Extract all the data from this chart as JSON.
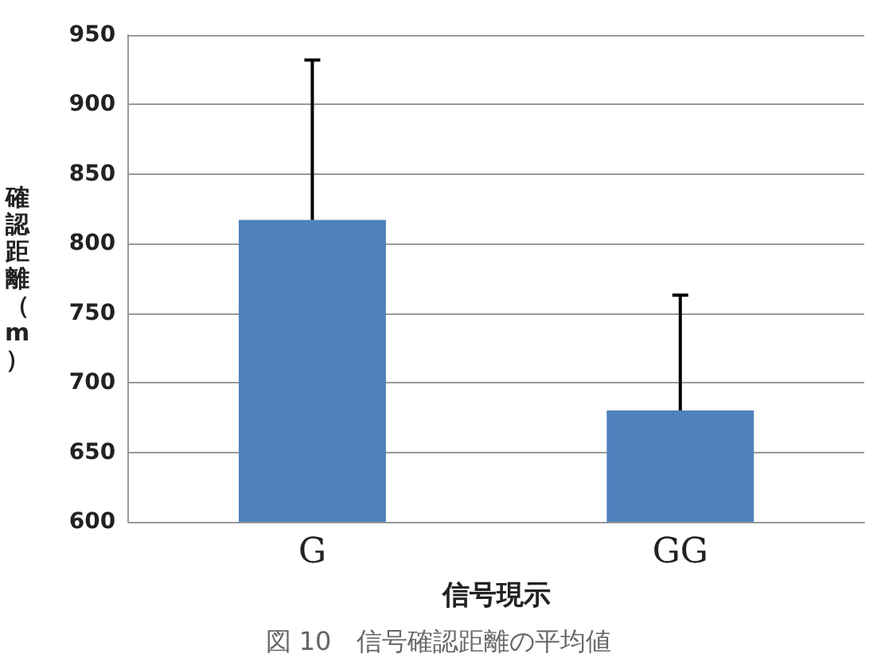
{
  "chart_data": {
    "type": "bar",
    "xlabel": "信号現示",
    "ylabel": "確認距離（m）",
    "categories": [
      "G",
      "GG"
    ],
    "series": [
      {
        "color": "#4f81bd",
        "values": [
          817,
          680
        ],
        "errors": [
          [
            817,
            932
          ],
          [
            680,
            763
          ]
        ]
      }
    ],
    "ylim": [
      600,
      950
    ],
    "yticks": [
      600,
      650,
      700,
      750,
      800,
      850,
      900,
      950
    ],
    "grid": "y",
    "annotations": [
      "図 10　信号確認距離の平均値"
    ]
  }
}
